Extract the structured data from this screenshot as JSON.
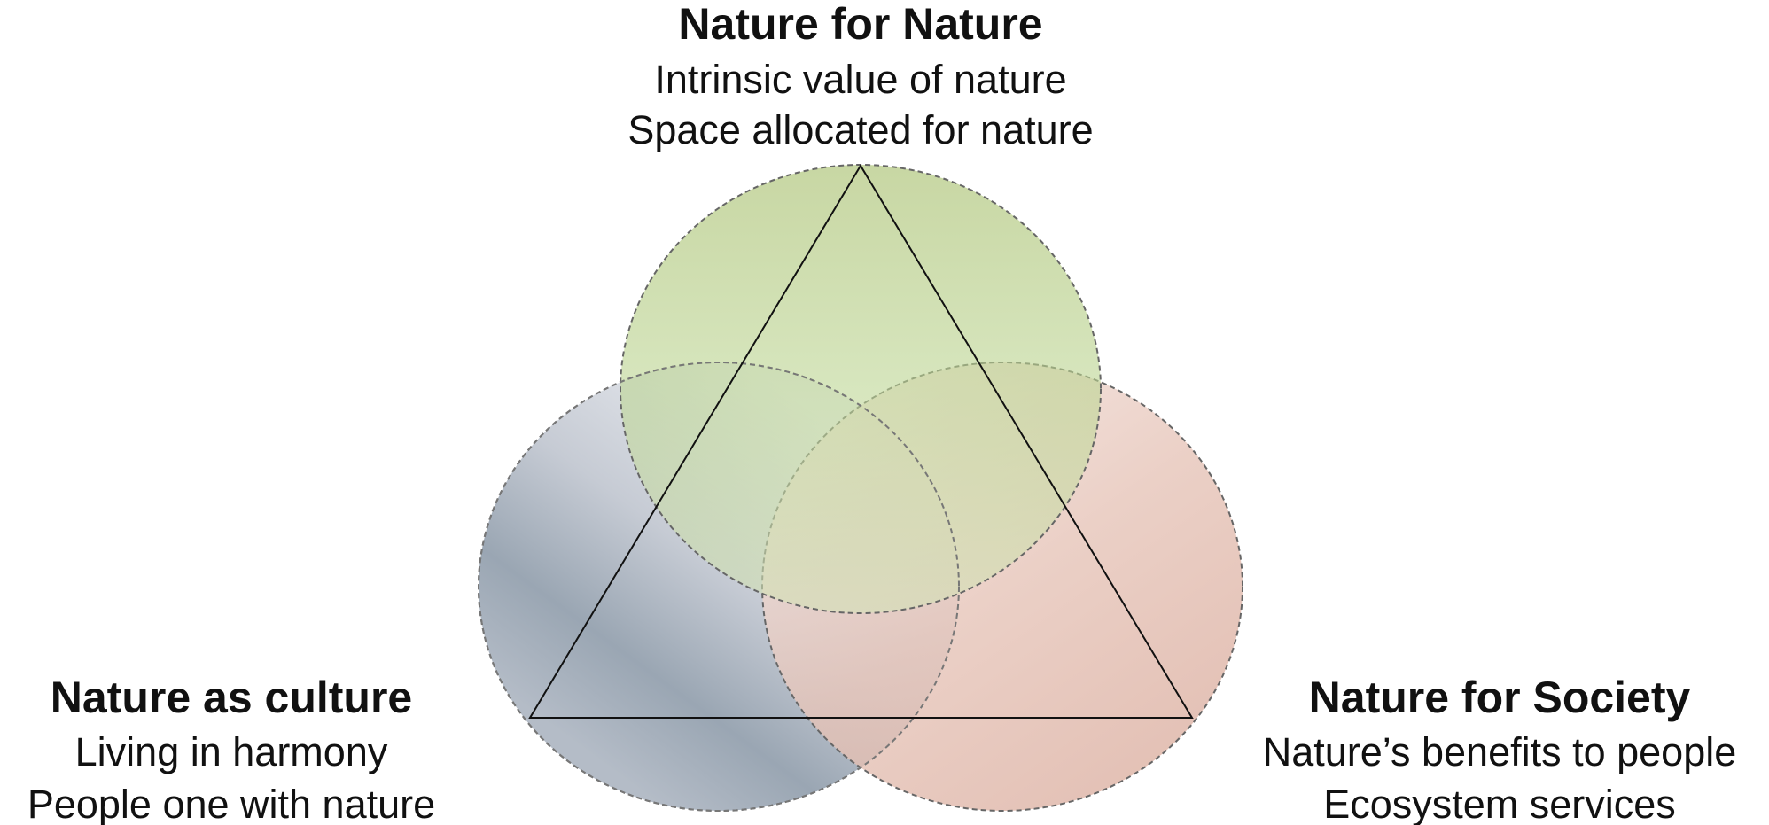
{
  "nodes": [
    {
      "title": "Nature for Nature",
      "lines": [
        "Intrinsic value of nature",
        "Space allocated for nature"
      ]
    },
    {
      "title": "Nature as culture",
      "lines": [
        "Living in harmony",
        "People one with nature"
      ]
    },
    {
      "title": "Nature for Society",
      "lines": [
        "Nature’s benefits to people",
        "Ecosystem services"
      ]
    }
  ]
}
